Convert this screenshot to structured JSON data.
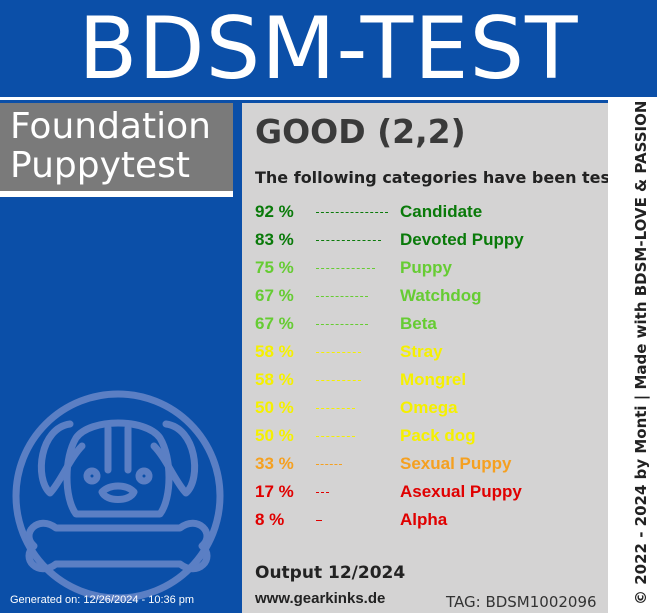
{
  "header": {
    "title": "BDSM-TEST"
  },
  "test": {
    "title_line1": "Foundation",
    "title_line2": "Puppytest"
  },
  "result": {
    "grade": "GOOD (2,2)",
    "intro": "The following categories have been tested:",
    "categories": [
      {
        "percent": "92 %",
        "label": "Candidate",
        "value": 92,
        "color": "#0a7a0a"
      },
      {
        "percent": "83 %",
        "label": "Devoted Puppy",
        "value": 83,
        "color": "#0a7a0a"
      },
      {
        "percent": "75 %",
        "label": "Puppy",
        "value": 75,
        "color": "#66cc33"
      },
      {
        "percent": "67 %",
        "label": "Watchdog",
        "value": 67,
        "color": "#66cc33"
      },
      {
        "percent": "67 %",
        "label": "Beta",
        "value": 67,
        "color": "#66cc33"
      },
      {
        "percent": "58 %",
        "label": "Stray",
        "value": 58,
        "color": "#f5f000"
      },
      {
        "percent": "58 %",
        "label": "Mongrel",
        "value": 58,
        "color": "#f5f000"
      },
      {
        "percent": "50 %",
        "label": "Omega",
        "value": 50,
        "color": "#f5f000"
      },
      {
        "percent": "50 %",
        "label": "Pack dog",
        "value": 50,
        "color": "#f5f000"
      },
      {
        "percent": "33 %",
        "label": "Sexual Puppy",
        "value": 33,
        "color": "#f5a020"
      },
      {
        "percent": "17 %",
        "label": "Asexual Puppy",
        "value": 17,
        "color": "#e00000"
      },
      {
        "percent": "8 %",
        "label": "Alpha",
        "value": 8,
        "color": "#e00000"
      }
    ]
  },
  "footer": {
    "output": "Output 12/2024",
    "site": "www.gearkinks.de",
    "tag": "TAG: BDSM1002096",
    "generated": "Generated on: 12/26/2024 - 10:36 pm",
    "credit": "© 2022 - 2024 by Monti | Made with BDSM-LOVE & PASSION"
  },
  "logo": {
    "icon": "puppy-bone-icon"
  }
}
